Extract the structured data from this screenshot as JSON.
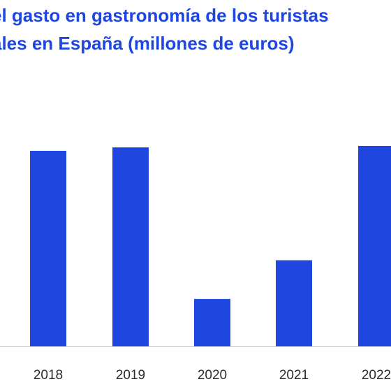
{
  "chart_data": {
    "type": "bar",
    "title_lines": [
      "el gasto en gastronomía de los turistas",
      "ales en España (millones de euros)"
    ],
    "categories": [
      "2018",
      "2019",
      "2020",
      "2021",
      "2022"
    ],
    "values": [
      20000,
      20350,
      4850,
      8800,
      20500
    ],
    "ylim": [
      0,
      24000
    ],
    "colors": {
      "bar": "#1f47e0",
      "title": "#1f47e0",
      "axis": "#cfcfcf"
    },
    "grid": false,
    "legend": "none"
  }
}
